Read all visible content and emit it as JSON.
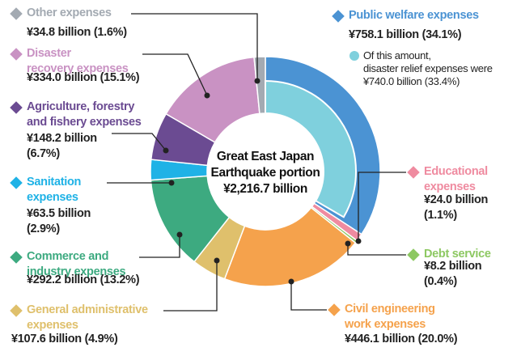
{
  "chart_data": {
    "type": "donut",
    "center_label": "Great East Japan\nEarthquake portion",
    "total": 2216.7,
    "total_label": "¥2,216.7 billion",
    "categories": [
      "Public welfare expenses",
      "Educational\nexpenses",
      "Debt service",
      "Civil engineering\nwork expenses",
      "General administrative\nexpenses",
      "Commerce and\nindustry expenses",
      "Sanitation\nexpenses",
      "Agriculture, forestry\nand fishery expenses",
      "Disaster\nrecovery expenses",
      "Other expenses"
    ],
    "values": [
      758.1,
      24.0,
      8.2,
      446.1,
      107.6,
      292.2,
      63.5,
      148.2,
      334.0,
      34.8
    ],
    "value_labels": [
      "¥758.1 billion (34.1%)",
      "¥24.0 billion\n(1.1%)",
      "¥8.2 billion\n(0.4%)",
      "¥446.1 billion (20.0%)",
      "¥107.6 billion (4.9%)",
      "¥292.2 billion (13.2%)",
      "¥63.5 billion\n(2.9%)",
      "¥148.2 billion\n(6.7%)",
      "¥334.0 billion (15.1%)",
      "¥34.8 billion (1.6%)"
    ],
    "colors": [
      "#4b93d3",
      "#ef8ba0",
      "#8dc862",
      "#f5a24c",
      "#dfc06c",
      "#3daa80",
      "#1fb2e6",
      "#6b4b92",
      "#c992c3",
      "#a3aab2"
    ],
    "inner": {
      "name": "Of this amount,\ndisaster relief expenses were",
      "value": 740.0,
      "value_label": "¥740.0 billion (33.4%)",
      "color": "#7fd0dd"
    }
  }
}
